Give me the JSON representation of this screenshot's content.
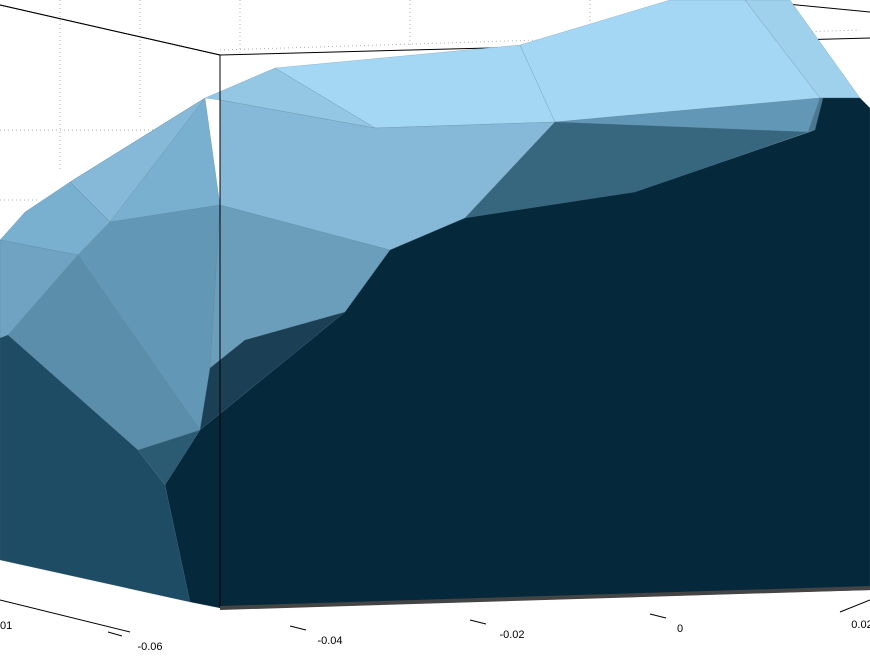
{
  "chart_data": {
    "type": "surface",
    "title": "",
    "xlabel": "",
    "ylabel": "",
    "zlabel": "",
    "grid": true,
    "x_ticks": [
      "-0.06",
      "-0.04",
      "-0.02",
      "0",
      "0.02"
    ],
    "y_ticks_partial": [
      "01"
    ],
    "colors": {
      "bright": "#a3d7f4",
      "light": "#86b9d7",
      "mid": "#5b8eab",
      "shade": "#37667f",
      "dark": "#1f4c65",
      "darkest": "#05283b",
      "axis": "#000000",
      "grid": "#b0b0b0"
    }
  }
}
